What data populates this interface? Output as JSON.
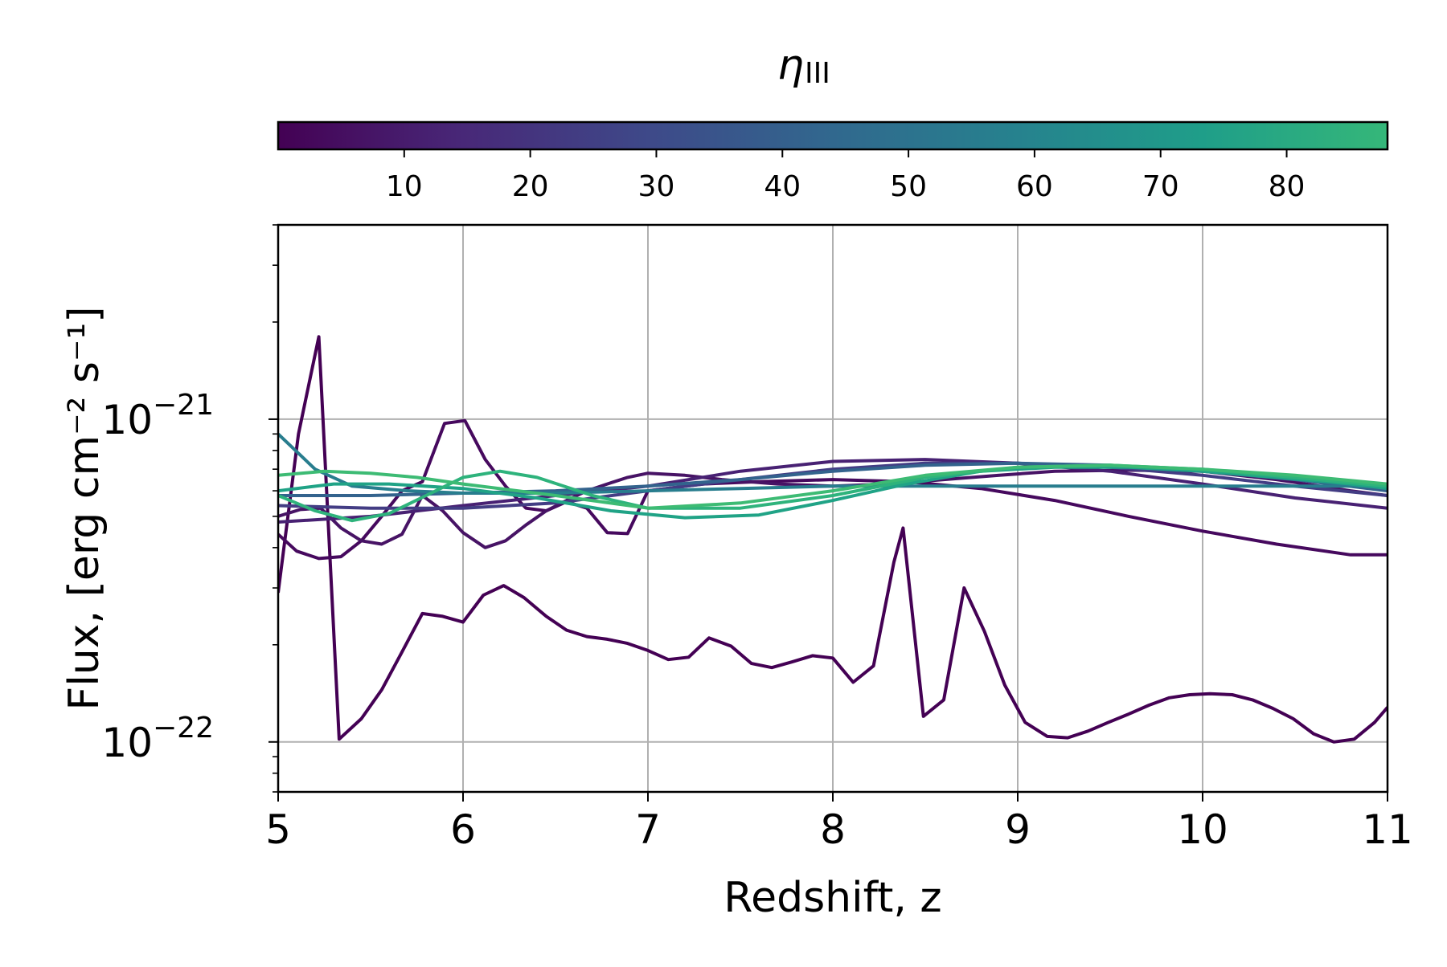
{
  "chart_data": {
    "type": "line",
    "xlabel": "Redshift, z",
    "ylabel": "Flux, [erg cm⁻² s⁻¹]",
    "xlim": [
      5,
      11
    ],
    "ylim": [
      7e-23,
      4e-21
    ],
    "yscale": "log",
    "grid": true,
    "x_ticks": [
      "5",
      "6",
      "7",
      "8",
      "9",
      "10",
      "11"
    ],
    "y_ticks": [
      {
        "value": 1e-22,
        "base": "10",
        "exp": "−22"
      },
      {
        "value": 1e-21,
        "base": "10",
        "exp": "−21"
      }
    ],
    "colorbar": {
      "label_main": "η",
      "label_sub": "III",
      "range": [
        0,
        88
      ],
      "ticks": [
        "10",
        "20",
        "30",
        "40",
        "50",
        "60",
        "70",
        "80"
      ],
      "tick_values": [
        10,
        20,
        30,
        40,
        50,
        60,
        70,
        80
      ],
      "colormap": "viridis",
      "stops": [
        "#440154",
        "#482878",
        "#3e4989",
        "#31688e",
        "#26828e",
        "#1f9e89",
        "#35b779"
      ]
    },
    "series": [
      {
        "eta": 1,
        "color": "#440154",
        "x": [
          5.0,
          5.11,
          5.22,
          5.33,
          5.45,
          5.56,
          5.67,
          5.78,
          5.89,
          6.0,
          6.11,
          6.22,
          6.33,
          6.45,
          6.56,
          6.67,
          6.78,
          6.89,
          7.0,
          7.11,
          7.22,
          7.33,
          7.45,
          7.56,
          7.67,
          7.78,
          7.89,
          8.0,
          8.11,
          8.22,
          8.33,
          8.38,
          8.49,
          8.6,
          8.71,
          8.82,
          8.93,
          9.04,
          9.16,
          9.27,
          9.38,
          9.49,
          9.6,
          9.71,
          9.82,
          9.93,
          10.04,
          10.16,
          10.27,
          10.38,
          10.49,
          10.6,
          10.71,
          10.82,
          10.93,
          11.0
        ],
        "y": [
          2.9e-22,
          9e-22,
          1.8e-21,
          1.02e-22,
          1.18e-22,
          1.45e-22,
          1.9e-22,
          2.5e-22,
          2.45e-22,
          2.35e-22,
          2.85e-22,
          3.05e-22,
          2.8e-22,
          2.45e-22,
          2.22e-22,
          2.12e-22,
          2.08e-22,
          2.02e-22,
          1.92e-22,
          1.8e-22,
          1.83e-22,
          2.1e-22,
          1.98e-22,
          1.75e-22,
          1.7e-22,
          1.77e-22,
          1.85e-22,
          1.82e-22,
          1.53e-22,
          1.72e-22,
          3.6e-22,
          4.6e-22,
          1.2e-22,
          1.35e-22,
          3e-22,
          2.2e-22,
          1.5e-22,
          1.15e-22,
          1.04e-22,
          1.03e-22,
          1.08e-22,
          1.15e-22,
          1.22e-22,
          1.3e-22,
          1.37e-22,
          1.4e-22,
          1.41e-22,
          1.4e-22,
          1.35e-22,
          1.27e-22,
          1.18e-22,
          1.06e-22,
          1e-22,
          1.02e-22,
          1.15e-22,
          1.28e-22
        ]
      },
      {
        "eta": 5,
        "color": "#46095e",
        "x": [
          5.0,
          5.1,
          5.22,
          5.34,
          5.45,
          5.56,
          5.67,
          5.78,
          5.9,
          6.01,
          6.12,
          6.23,
          6.34,
          6.45,
          6.56,
          6.67,
          6.78,
          6.89,
          7.0,
          7.3,
          7.6,
          8.0,
          8.4,
          8.8,
          9.2,
          9.6,
          10.0,
          10.4,
          10.8,
          11.0
        ],
        "y": [
          4.4e-22,
          3.9e-22,
          3.7e-22,
          3.75e-22,
          4.2e-22,
          5e-22,
          6e-22,
          6.4e-22,
          9.7e-22,
          9.9e-22,
          7.5e-22,
          6.2e-22,
          5.3e-22,
          5.2e-22,
          5.55e-22,
          5.3e-22,
          4.45e-22,
          4.42e-22,
          6e-22,
          6.3e-22,
          6.4e-22,
          6.5e-22,
          6.4e-22,
          6.1e-22,
          5.6e-22,
          5e-22,
          4.5e-22,
          4.1e-22,
          3.8e-22,
          3.8e-22
        ]
      },
      {
        "eta": 9,
        "color": "#471365",
        "x": [
          5.0,
          5.12,
          5.23,
          5.34,
          5.45,
          5.56,
          5.67,
          5.78,
          5.89,
          6.0,
          6.12,
          6.23,
          6.34,
          6.45,
          6.56,
          6.67,
          6.78,
          6.89,
          7.0,
          7.2,
          7.4,
          7.7,
          8.0,
          8.3,
          8.6,
          8.9,
          9.2,
          9.6,
          10.0,
          10.4,
          10.8,
          11.0
        ],
        "y": [
          5e-22,
          5.25e-22,
          5.3e-22,
          4.6e-22,
          4.2e-22,
          4.1e-22,
          4.4e-22,
          5.8e-22,
          5.2e-22,
          4.45e-22,
          4e-22,
          4.2e-22,
          4.7e-22,
          5.2e-22,
          5.6e-22,
          6e-22,
          6.3e-22,
          6.6e-22,
          6.8e-22,
          6.7e-22,
          6.5e-22,
          6.3e-22,
          6.2e-22,
          6.3e-22,
          6.5e-22,
          6.7e-22,
          6.9e-22,
          6.95e-22,
          6.9e-22,
          6.5e-22,
          6e-22,
          5.8e-22
        ]
      },
      {
        "eta": 15,
        "color": "#482173",
        "x": [
          5.0,
          5.5,
          6.0,
          6.5,
          7.0,
          7.5,
          8.0,
          8.5,
          9.0,
          9.5,
          10.0,
          10.5,
          11.0
        ],
        "y": [
          4.8e-22,
          5e-22,
          5.4e-22,
          5.8e-22,
          6.2e-22,
          6.9e-22,
          7.4e-22,
          7.5e-22,
          7.3e-22,
          6.9e-22,
          6.3e-22,
          5.7e-22,
          5.3e-22
        ]
      },
      {
        "eta": 25,
        "color": "#433d84",
        "x": [
          5.0,
          5.5,
          6.0,
          6.5,
          7.0,
          7.5,
          8.0,
          8.5,
          9.0,
          9.5,
          10.0,
          10.5,
          11.0
        ],
        "y": [
          5.4e-22,
          5.3e-22,
          5.3e-22,
          5.5e-22,
          6e-22,
          6.5e-22,
          7e-22,
          7.3e-22,
          7.3e-22,
          7.1e-22,
          6.7e-22,
          6.2e-22,
          5.8e-22
        ]
      },
      {
        "eta": 40,
        "color": "#33638d",
        "x": [
          5.0,
          5.5,
          6.0,
          6.5,
          7.0,
          7.5,
          8.0,
          8.5,
          9.0,
          9.5,
          10.0,
          10.5,
          11.0
        ],
        "y": [
          5.8e-22,
          5.8e-22,
          5.9e-22,
          6e-22,
          6.2e-22,
          6.5e-22,
          6.9e-22,
          7.2e-22,
          7.3e-22,
          7.2e-22,
          6.9e-22,
          6.5e-22,
          6e-22
        ]
      },
      {
        "eta": 50,
        "color": "#287d8e",
        "x": [
          5.0,
          5.2,
          5.4,
          5.7,
          6.0,
          6.5,
          7.0,
          7.5,
          8.0,
          8.5,
          9.0,
          9.5,
          10.0,
          10.5,
          11.0
        ],
        "y": [
          9e-22,
          7e-22,
          6.2e-22,
          6e-22,
          5.9e-22,
          5.9e-22,
          6e-22,
          6.1e-22,
          6.2e-22,
          6.2e-22,
          6.2e-22,
          6.2e-22,
          6.2e-22,
          6.2e-22,
          6.2e-22
        ]
      },
      {
        "eta": 65,
        "color": "#20a386",
        "x": [
          5.0,
          5.3,
          5.6,
          6.0,
          6.4,
          6.8,
          7.2,
          7.6,
          8.0,
          8.4,
          8.8,
          9.2,
          9.6,
          10.0,
          10.4,
          10.8,
          11.0
        ],
        "y": [
          6e-22,
          6.3e-22,
          6.3e-22,
          6.1e-22,
          5.7e-22,
          5.2e-22,
          4.95e-22,
          5.05e-22,
          5.6e-22,
          6.3e-22,
          6.9e-22,
          7.1e-22,
          7.1e-22,
          6.9e-22,
          6.6e-22,
          6.3e-22,
          6.1e-22
        ]
      },
      {
        "eta": 75,
        "color": "#2eb37c",
        "x": [
          5.0,
          5.2,
          5.4,
          5.6,
          5.8,
          6.0,
          6.2,
          6.4,
          6.7,
          7.0,
          7.5,
          8.0,
          8.5,
          9.0,
          9.5,
          10.0,
          10.5,
          11.0
        ],
        "y": [
          5.8e-22,
          5.2e-22,
          4.85e-22,
          5.1e-22,
          5.8e-22,
          6.6e-22,
          6.9e-22,
          6.6e-22,
          5.8e-22,
          5.3e-22,
          5.3e-22,
          5.8e-22,
          6.6e-22,
          7.1e-22,
          7.2e-22,
          7e-22,
          6.6e-22,
          6.2e-22
        ]
      },
      {
        "eta": 85,
        "color": "#3dbb74",
        "x": [
          5.0,
          5.25,
          5.5,
          5.75,
          6.0,
          6.5,
          7.0,
          7.5,
          8.0,
          8.5,
          9.0,
          9.5,
          10.0,
          10.5,
          11.0
        ],
        "y": [
          6.7e-22,
          6.9e-22,
          6.8e-22,
          6.6e-22,
          6.3e-22,
          5.8e-22,
          5.3e-22,
          5.5e-22,
          6e-22,
          6.7e-22,
          7.1e-22,
          7.2e-22,
          7e-22,
          6.7e-22,
          6.3e-22
        ]
      }
    ]
  }
}
